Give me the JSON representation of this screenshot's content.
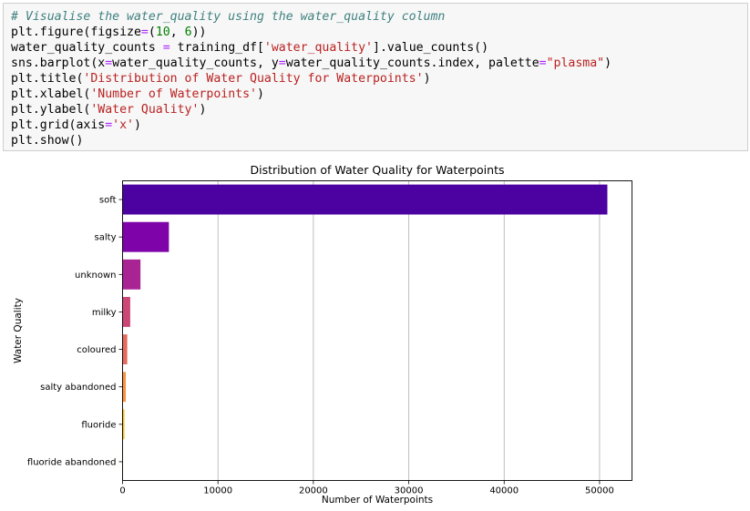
{
  "code_cell": {
    "lines": [
      [
        {
          "t": "# Visualise the water_quality using the water_quality column",
          "c": "comment"
        }
      ],
      [
        {
          "t": "plt.figure(figsize",
          "c": ""
        },
        {
          "t": "=",
          "c": "op"
        },
        {
          "t": "(",
          "c": ""
        },
        {
          "t": "10",
          "c": "num"
        },
        {
          "t": ", ",
          "c": ""
        },
        {
          "t": "6",
          "c": "num"
        },
        {
          "t": "))",
          "c": ""
        }
      ],
      [
        {
          "t": "water_quality_counts ",
          "c": ""
        },
        {
          "t": "=",
          "c": "op"
        },
        {
          "t": " training_df[",
          "c": ""
        },
        {
          "t": "'water_quality'",
          "c": "str"
        },
        {
          "t": "].value_counts()",
          "c": ""
        }
      ],
      [
        {
          "t": "sns.barplot(x",
          "c": ""
        },
        {
          "t": "=",
          "c": "op"
        },
        {
          "t": "water_quality_counts, y",
          "c": ""
        },
        {
          "t": "=",
          "c": "op"
        },
        {
          "t": "water_quality_counts.index, palette",
          "c": ""
        },
        {
          "t": "=",
          "c": "op"
        },
        {
          "t": "\"plasma\"",
          "c": "str"
        },
        {
          "t": ")",
          "c": ""
        }
      ],
      [
        {
          "t": "plt.title(",
          "c": ""
        },
        {
          "t": "'Distribution of Water Quality for Waterpoints'",
          "c": "str"
        },
        {
          "t": ")",
          "c": ""
        }
      ],
      [
        {
          "t": "plt.xlabel(",
          "c": ""
        },
        {
          "t": "'Number of Waterpoints'",
          "c": "str"
        },
        {
          "t": ")",
          "c": ""
        }
      ],
      [
        {
          "t": "plt.ylabel(",
          "c": ""
        },
        {
          "t": "'Water Quality'",
          "c": "str"
        },
        {
          "t": ")",
          "c": ""
        }
      ],
      [
        {
          "t": "plt.grid(axis",
          "c": ""
        },
        {
          "t": "=",
          "c": "op"
        },
        {
          "t": "'x'",
          "c": "str"
        },
        {
          "t": ")",
          "c": ""
        }
      ],
      [
        {
          "t": "plt.show()",
          "c": ""
        }
      ]
    ]
  },
  "chart_data": {
    "type": "bar",
    "orientation": "horizontal",
    "title": "Distribution of Water Quality for Waterpoints",
    "xlabel": "Number of Waterpoints",
    "ylabel": "Water Quality",
    "categories": [
      "soft",
      "salty",
      "unknown",
      "milky",
      "coloured",
      "salty abandoned",
      "fluoride",
      "fluoride abandoned"
    ],
    "values": [
      50818,
      4856,
      1876,
      804,
      490,
      339,
      200,
      17
    ],
    "colors": [
      "#4c02a1",
      "#7e03a8",
      "#a92395",
      "#cc4778",
      "#e56b5d",
      "#f89441",
      "#fdc328",
      "#f0f921"
    ],
    "xlim": [
      0,
      53400
    ],
    "xticks": [
      0,
      10000,
      20000,
      30000,
      40000,
      50000
    ],
    "grid": "x"
  }
}
